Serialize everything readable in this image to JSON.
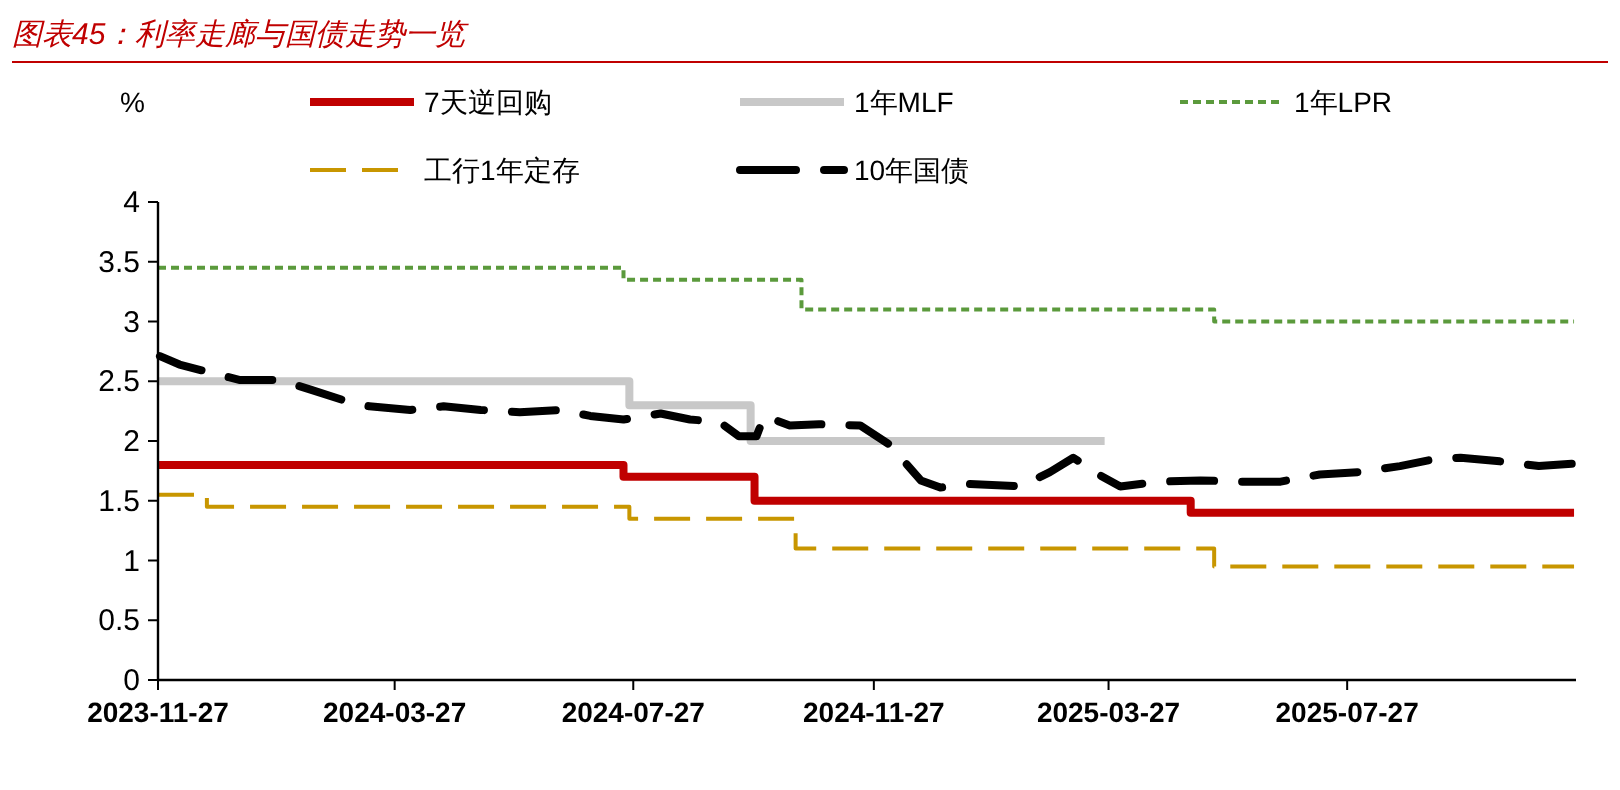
{
  "chart_data": {
    "type": "step",
    "title": "图表45：利率走廊与国债走势一览",
    "ylabel": "%",
    "xlim": [
      "2023-11-27",
      "2025-11-21"
    ],
    "xticks": [
      "2023-11-27",
      "2024-03-27",
      "2024-07-27",
      "2024-11-27",
      "2025-03-27",
      "2025-07-27"
    ],
    "ylim": [
      0,
      4
    ],
    "yticks": [
      0,
      0.5,
      1,
      1.5,
      2,
      2.5,
      3,
      3.5,
      4
    ],
    "grid": false,
    "legend": "top",
    "series": [
      {
        "name": "7天逆回购",
        "color": "#c00000",
        "line_style": "solid",
        "x": [
          "2023-11-27",
          "2024-07-22",
          "2024-09-27",
          "2025-05-08",
          "2025-11-20"
        ],
        "values": [
          1.8,
          1.7,
          1.5,
          1.4,
          1.4
        ]
      },
      {
        "name": "1年MLF",
        "color": "#c8c8c8",
        "line_style": "solid",
        "x": [
          "2023-11-27",
          "2024-07-25",
          "2024-09-25",
          "2025-03-25"
        ],
        "values": [
          2.5,
          2.3,
          2.0,
          2.0
        ]
      },
      {
        "name": "1年LPR",
        "color": "#5b9a3c",
        "line_style": "dotted",
        "x": [
          "2023-11-27",
          "2024-07-22",
          "2024-10-21",
          "2025-05-20",
          "2025-11-20"
        ],
        "values": [
          3.45,
          3.35,
          3.1,
          3.0,
          3.0
        ]
      },
      {
        "name": "工行1年定存",
        "color": "#c89600",
        "line_style": "dashed",
        "x": [
          "2023-11-27",
          "2023-12-22",
          "2024-07-25",
          "2024-10-18",
          "2025-05-20",
          "2025-11-20"
        ],
        "values": [
          1.55,
          1.45,
          1.35,
          1.1,
          0.95,
          0.95
        ]
      },
      {
        "name": "10年国债",
        "color": "#000000",
        "type": "line",
        "line_style": "dashed",
        "x": [
          "2023-11-28",
          "2023-12-08",
          "2023-12-22",
          "2024-01-08",
          "2024-01-28",
          "2024-02-13",
          "2024-03-01",
          "2024-03-14",
          "2024-04-04",
          "2024-04-21",
          "2024-05-10",
          "2024-05-30",
          "2024-06-20",
          "2024-07-05",
          "2024-07-22",
          "2024-08-10",
          "2024-08-25",
          "2024-09-09",
          "2024-09-19",
          "2024-09-28",
          "2024-10-02",
          "2024-10-15",
          "2024-10-30",
          "2024-11-20",
          "2024-12-05",
          "2024-12-21",
          "2024-12-31",
          "2025-01-15",
          "2025-02-10",
          "2025-02-25",
          "2025-03-09",
          "2025-03-23",
          "2025-04-02",
          "2025-04-22",
          "2025-05-13",
          "2025-06-02",
          "2025-06-23",
          "2025-07-13",
          "2025-08-02",
          "2025-08-23",
          "2025-09-07",
          "2025-09-23",
          "2025-10-13",
          "2025-11-02",
          "2025-11-20"
        ],
        "values": [
          2.71,
          2.64,
          2.58,
          2.51,
          2.51,
          2.43,
          2.34,
          2.29,
          2.26,
          2.29,
          2.26,
          2.24,
          2.26,
          2.21,
          2.18,
          2.23,
          2.18,
          2.16,
          2.04,
          2.04,
          2.21,
          2.13,
          2.14,
          2.13,
          1.97,
          1.67,
          1.61,
          1.64,
          1.62,
          1.74,
          1.86,
          1.71,
          1.62,
          1.66,
          1.67,
          1.66,
          1.66,
          1.72,
          1.74,
          1.79,
          1.84,
          1.86,
          1.83,
          1.79,
          1.81
        ]
      }
    ]
  }
}
